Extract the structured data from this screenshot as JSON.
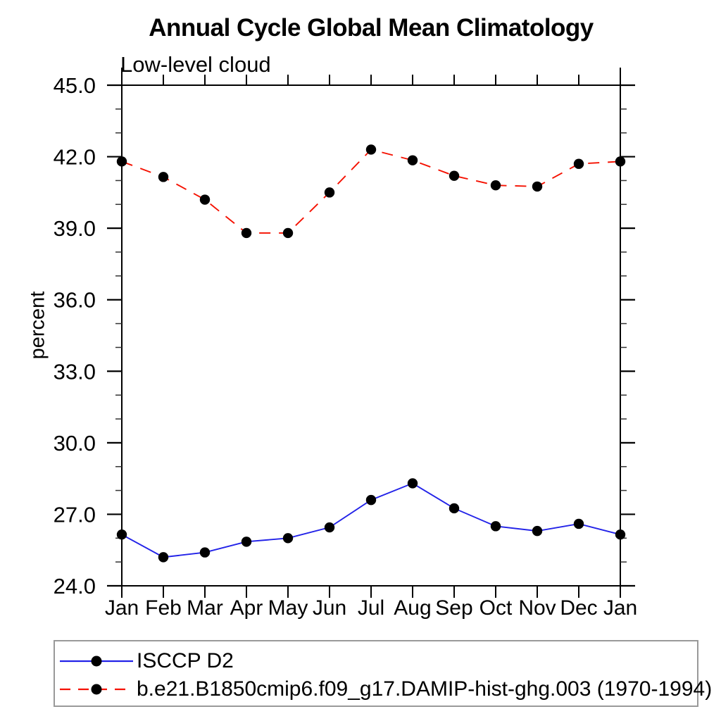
{
  "chart_data": {
    "type": "line",
    "title": "Annual Cycle Global Mean Climatology",
    "subtitle": "Low-level cloud",
    "ylabel": "percent",
    "xlabel": "",
    "categories": [
      "Jan",
      "Feb",
      "Mar",
      "Apr",
      "May",
      "Jun",
      "Jul",
      "Aug",
      "Sep",
      "Oct",
      "Nov",
      "Dec",
      "Jan"
    ],
    "ylim": [
      24.0,
      45.0
    ],
    "ytick_major_values": [
      24,
      27,
      30,
      33,
      36,
      39,
      42,
      45
    ],
    "ytick_major_labels": [
      "24.0",
      "27.0",
      "30.0",
      "33.0",
      "36.0",
      "39.0",
      "42.0",
      "45.0"
    ],
    "ytick_minor_interval": 1.0,
    "grid": false,
    "legend_position": "bottom-left-box",
    "marker_color": "#000000",
    "series": [
      {
        "name": "ISCCP D2",
        "color": "#2222e8",
        "line_style": "solid",
        "marker": "filled-circle",
        "values": [
          26.15,
          25.2,
          25.4,
          25.85,
          26.0,
          26.45,
          27.6,
          28.3,
          27.25,
          26.5,
          26.3,
          26.6,
          26.15
        ]
      },
      {
        "name": "b.e21.B1850cmip6.f09_g17.DAMIP-hist-ghg.003 (1970-1994)",
        "color": "#f51000",
        "line_style": "dashed",
        "marker": "filled-circle",
        "values": [
          41.8,
          41.15,
          40.2,
          38.8,
          38.8,
          40.5,
          42.3,
          41.85,
          41.2,
          40.8,
          40.75,
          41.7,
          41.8
        ]
      }
    ]
  }
}
